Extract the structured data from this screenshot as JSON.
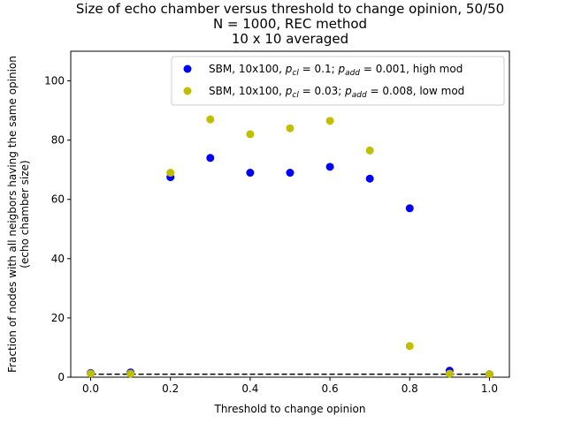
{
  "chart_data": {
    "type": "scatter",
    "title_lines": [
      "Size of echo chamber versus threshold to change opinion, 50/50",
      "N = 1000, REC method",
      "10 x 10 averaged"
    ],
    "xlabel": "Threshold to change opinion",
    "ylabel_lines": [
      "Fraction of nodes with all neigbors having the same opinion",
      "(echo chamber size)"
    ],
    "xlim": [
      -0.05,
      1.05
    ],
    "ylim": [
      0,
      110
    ],
    "xticks": [
      0.0,
      0.2,
      0.4,
      0.6,
      0.8,
      1.0
    ],
    "xtick_labels": [
      "0.0",
      "0.2",
      "0.4",
      "0.6",
      "0.8",
      "1.0"
    ],
    "yticks": [
      0,
      20,
      40,
      60,
      80,
      100
    ],
    "ytick_labels": [
      "0",
      "20",
      "40",
      "60",
      "80",
      "100"
    ],
    "grid": false,
    "legend_position": "upper right",
    "x": [
      0.0,
      0.1,
      0.2,
      0.3,
      0.4,
      0.5,
      0.6,
      0.7,
      0.8,
      0.9,
      1.0
    ],
    "series": [
      {
        "color": "#0000ff",
        "legend": {
          "prefix": "SBM, 10x100, ",
          "p1_sym": "p",
          "p1_sub": "cl",
          "p1_val": " = 0.1; ",
          "p2_sym": "p",
          "p2_sub": "add",
          "p2_val": " = 0.001, high mod"
        },
        "values": [
          1.4,
          1.6,
          67.5,
          74.0,
          69.0,
          69.0,
          71.0,
          67.0,
          57.0,
          2.2,
          1.0
        ]
      },
      {
        "color": "#bfbf00",
        "legend": {
          "prefix": "SBM, 10x100, ",
          "p1_sym": "p",
          "p1_sub": "cl",
          "p1_val": " = 0.03; ",
          "p2_sym": "p",
          "p2_sub": "add",
          "p2_val": " = 0.008, low mod"
        },
        "values": [
          1.2,
          1.2,
          69.0,
          87.0,
          82.0,
          84.0,
          86.5,
          76.5,
          10.5,
          1.2,
          1.0
        ]
      }
    ],
    "reference_line": {
      "y": 1.0,
      "style": "dashed",
      "color": "#000000"
    }
  }
}
